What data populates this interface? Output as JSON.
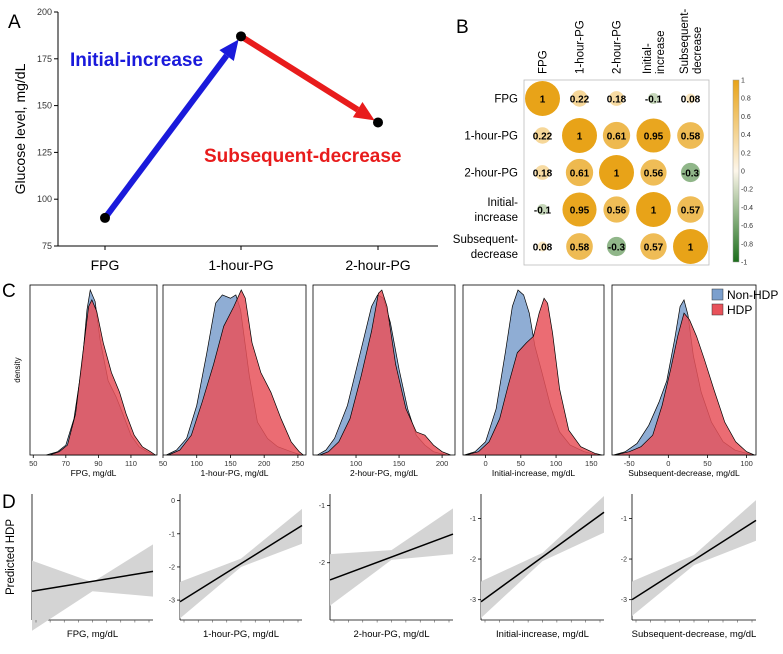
{
  "panel_labels": {
    "a": "A",
    "b": "B",
    "c": "C",
    "d": "D"
  },
  "colors": {
    "blue_arrow": "#1a1adb",
    "red_arrow": "#e81c1c",
    "non_hdp_fill": "#7b9fcd",
    "hdp_fill": "#e8525a",
    "corr_positive": "#e8a318",
    "corr_negative": "#1b6e1b",
    "ci_band": "#d4d4d4"
  },
  "chart_data": [
    {
      "id": "A",
      "type": "line",
      "categories": [
        "FPG",
        "1-hour-PG",
        "2-hour-PG"
      ],
      "values": [
        90,
        187,
        141
      ],
      "ylabel": "Glucose level, mg/dL",
      "ylim": [
        75,
        200
      ],
      "yticks": [
        75,
        100,
        125,
        150,
        175,
        200
      ],
      "annotations": [
        "Initial-increase",
        "Subsequent-decrease"
      ]
    },
    {
      "id": "B",
      "type": "heatmap",
      "variables": [
        "FPG",
        "1-hour-PG",
        "2-hour-PG",
        "Initial-increase",
        "Subsequent-decrease"
      ],
      "row_labels": [
        "FPG",
        "1-hour-PG",
        "2-hour-PG",
        "Initial-\nincrease",
        "Subsequent-\ndecrease"
      ],
      "col_labels": [
        "FPG",
        "1-hour-PG",
        "2-hour-PG",
        "Initial-\nincrease",
        "Subsequent-\ndecrease"
      ],
      "cells": [
        [
          "1",
          "0.22",
          "0.18",
          "-0.1",
          "0.08"
        ],
        [
          "0.22",
          "1",
          "0.61",
          "0.95",
          "0.58"
        ],
        [
          "0.18",
          "0.61",
          "1",
          "0.56",
          "-0.3"
        ],
        [
          "-0.1",
          "0.95",
          "0.56",
          "1",
          "0.57"
        ],
        [
          "0.08",
          "0.58",
          "-0.3",
          "0.57",
          "1"
        ]
      ],
      "colorbar_ticks": [
        "1",
        "0.8",
        "0.6",
        "0.4",
        "0.2",
        "0",
        "-0.2",
        "-0.4",
        "-0.6",
        "-0.8",
        "-1"
      ]
    },
    {
      "id": "C",
      "type": "area",
      "ylabel": "density",
      "legend": [
        "Non-HDP",
        "HDP"
      ],
      "legend_position": "top-right",
      "panels": [
        {
          "xlabel": "FPG, mg/dL",
          "xlim": [
            48,
            126
          ],
          "xticks": [
            50,
            70,
            90,
            110
          ],
          "non_hdp": [
            [
              58,
              0
            ],
            [
              65,
              0.02
            ],
            [
              70,
              0.06
            ],
            [
              75,
              0.22
            ],
            [
              80,
              0.55
            ],
            [
              83,
              0.88
            ],
            [
              85,
              1.0
            ],
            [
              88,
              0.93
            ],
            [
              91,
              0.7
            ],
            [
              96,
              0.45
            ],
            [
              101,
              0.35
            ],
            [
              105,
              0.25
            ],
            [
              110,
              0.12
            ],
            [
              115,
              0.05
            ],
            [
              120,
              0.02
            ],
            [
              124,
              0
            ]
          ],
          "hdp": [
            [
              60,
              0
            ],
            [
              66,
              0.02
            ],
            [
              71,
              0.06
            ],
            [
              76,
              0.25
            ],
            [
              80,
              0.58
            ],
            [
              84,
              0.9
            ],
            [
              86,
              0.94
            ],
            [
              89,
              0.87
            ],
            [
              93,
              0.68
            ],
            [
              98,
              0.5
            ],
            [
              103,
              0.38
            ],
            [
              107,
              0.25
            ],
            [
              112,
              0.12
            ],
            [
              117,
              0.05
            ],
            [
              122,
              0.02
            ],
            [
              125,
              0
            ]
          ]
        },
        {
          "xlabel": "1-hour-PG, mg/dL",
          "xlim": [
            50,
            262
          ],
          "xticks": [
            50,
            100,
            150,
            200,
            250
          ],
          "non_hdp": [
            [
              55,
              0
            ],
            [
              70,
              0.03
            ],
            [
              85,
              0.1
            ],
            [
              100,
              0.3
            ],
            [
              115,
              0.62
            ],
            [
              128,
              0.92
            ],
            [
              138,
              0.97
            ],
            [
              150,
              0.95
            ],
            [
              158,
              0.97
            ],
            [
              165,
              0.88
            ],
            [
              178,
              0.48
            ],
            [
              190,
              0.2
            ],
            [
              205,
              0.1
            ],
            [
              220,
              0.05
            ],
            [
              240,
              0.02
            ],
            [
              255,
              0
            ]
          ],
          "hdp": [
            [
              58,
              0
            ],
            [
              75,
              0.03
            ],
            [
              92,
              0.12
            ],
            [
              108,
              0.32
            ],
            [
              125,
              0.55
            ],
            [
              140,
              0.78
            ],
            [
              155,
              0.9
            ],
            [
              166,
              1.0
            ],
            [
              172,
              0.95
            ],
            [
              182,
              0.68
            ],
            [
              195,
              0.5
            ],
            [
              210,
              0.38
            ],
            [
              225,
              0.22
            ],
            [
              240,
              0.08
            ],
            [
              252,
              0.02
            ],
            [
              258,
              0
            ]
          ]
        },
        {
          "xlabel": "2-hour-PG, mg/dL",
          "xlim": [
            50,
            215
          ],
          "xticks": [
            100,
            150,
            200
          ],
          "non_hdp": [
            [
              55,
              0
            ],
            [
              65,
              0.03
            ],
            [
              75,
              0.1
            ],
            [
              90,
              0.3
            ],
            [
              105,
              0.62
            ],
            [
              118,
              0.9
            ],
            [
              125,
              0.97
            ],
            [
              132,
              0.95
            ],
            [
              140,
              0.8
            ],
            [
              150,
              0.52
            ],
            [
              160,
              0.28
            ],
            [
              170,
              0.12
            ],
            [
              180,
              0.06
            ],
            [
              190,
              0.02
            ],
            [
              205,
              0
            ]
          ],
          "hdp": [
            [
              58,
              0
            ],
            [
              68,
              0.02
            ],
            [
              80,
              0.08
            ],
            [
              93,
              0.22
            ],
            [
              106,
              0.48
            ],
            [
              118,
              0.75
            ],
            [
              126,
              0.98
            ],
            [
              130,
              1.0
            ],
            [
              136,
              0.9
            ],
            [
              146,
              0.55
            ],
            [
              158,
              0.28
            ],
            [
              170,
              0.14
            ],
            [
              180,
              0.12
            ],
            [
              190,
              0.06
            ],
            [
              200,
              0.02
            ],
            [
              210,
              0
            ]
          ]
        },
        {
          "xlabel": "Initial-increase, mg/dL",
          "xlim": [
            -32,
            168
          ],
          "xticks": [
            0,
            50,
            100,
            150
          ],
          "non_hdp": [
            [
              -30,
              0
            ],
            [
              -15,
              0.02
            ],
            [
              0,
              0.08
            ],
            [
              15,
              0.28
            ],
            [
              28,
              0.62
            ],
            [
              38,
              0.9
            ],
            [
              46,
              1.0
            ],
            [
              54,
              0.97
            ],
            [
              62,
              0.86
            ],
            [
              70,
              0.66
            ],
            [
              80,
              0.5
            ],
            [
              92,
              0.3
            ],
            [
              105,
              0.14
            ],
            [
              120,
              0.06
            ],
            [
              140,
              0.02
            ],
            [
              160,
              0
            ]
          ],
          "hdp": [
            [
              -28,
              0
            ],
            [
              -10,
              0.02
            ],
            [
              5,
              0.08
            ],
            [
              20,
              0.22
            ],
            [
              32,
              0.42
            ],
            [
              45,
              0.62
            ],
            [
              58,
              0.68
            ],
            [
              68,
              0.72
            ],
            [
              76,
              0.86
            ],
            [
              83,
              0.95
            ],
            [
              88,
              0.92
            ],
            [
              95,
              0.74
            ],
            [
              105,
              0.4
            ],
            [
              118,
              0.15
            ],
            [
              135,
              0.05
            ],
            [
              155,
              0.01
            ],
            [
              165,
              0
            ]
          ]
        },
        {
          "xlabel": "Subsequent-decrease, mg/dL",
          "xlim": [
            -72,
            112
          ],
          "xticks": [
            -50,
            0,
            50,
            100
          ],
          "non_hdp": [
            [
              -70,
              0
            ],
            [
              -55,
              0.02
            ],
            [
              -40,
              0.07
            ],
            [
              -25,
              0.18
            ],
            [
              -12,
              0.32
            ],
            [
              -2,
              0.45
            ],
            [
              8,
              0.7
            ],
            [
              15,
              0.9
            ],
            [
              20,
              0.94
            ],
            [
              25,
              0.85
            ],
            [
              32,
              0.6
            ],
            [
              42,
              0.38
            ],
            [
              55,
              0.2
            ],
            [
              70,
              0.08
            ],
            [
              85,
              0.03
            ],
            [
              100,
              0.01
            ],
            [
              108,
              0
            ]
          ],
          "hdp": [
            [
              -68,
              0
            ],
            [
              -50,
              0.02
            ],
            [
              -35,
              0.05
            ],
            [
              -20,
              0.12
            ],
            [
              -8,
              0.3
            ],
            [
              3,
              0.52
            ],
            [
              12,
              0.72
            ],
            [
              20,
              0.86
            ],
            [
              27,
              0.82
            ],
            [
              36,
              0.72
            ],
            [
              46,
              0.58
            ],
            [
              58,
              0.4
            ],
            [
              72,
              0.2
            ],
            [
              86,
              0.08
            ],
            [
              100,
              0.02
            ],
            [
              110,
              0
            ]
          ]
        }
      ]
    },
    {
      "id": "D",
      "type": "line",
      "ylabel": "Predicted HDP",
      "panels": [
        {
          "xlabel": "FPG, mg/dL",
          "yticks": [],
          "ylim": [
            -3,
            0.5
          ],
          "line": [
            [
              0,
              -2.2
            ],
            [
              1,
              -1.65
            ]
          ],
          "ci_low": [
            [
              0,
              -3.3
            ],
            [
              0.5,
              -2.2
            ],
            [
              1,
              -2.35
            ]
          ],
          "ci_high": [
            [
              0,
              -1.35
            ],
            [
              0.5,
              -1.95
            ],
            [
              1,
              -0.9
            ]
          ]
        },
        {
          "xlabel": "1-hour-PG, mg/dL",
          "yticks": [
            "0",
            "-1",
            "-2",
            "-3"
          ],
          "ylim": [
            -3.6,
            0.2
          ],
          "line": [
            [
              0,
              -3.05
            ],
            [
              1,
              -0.75
            ]
          ],
          "ci_low": [
            [
              0,
              -3.55
            ],
            [
              0.5,
              -2.0
            ],
            [
              1,
              -1.3
            ]
          ],
          "ci_high": [
            [
              0,
              -2.45
            ],
            [
              0.5,
              -1.75
            ],
            [
              1,
              -0.25
            ]
          ]
        },
        {
          "xlabel": "2-hour-PG, mg/dL",
          "yticks": [
            "-1",
            "-2"
          ],
          "ylim": [
            -3.0,
            -0.8
          ],
          "line": [
            [
              0,
              -2.3
            ],
            [
              1,
              -1.5
            ]
          ],
          "ci_low": [
            [
              0,
              -2.75
            ],
            [
              0.5,
              -1.95
            ],
            [
              1,
              -1.85
            ]
          ],
          "ci_high": [
            [
              0,
              -1.85
            ],
            [
              0.5,
              -1.78
            ],
            [
              1,
              -1.05
            ]
          ]
        },
        {
          "xlabel": "Initial-increase, mg/dL",
          "yticks": [
            "-1",
            "-2",
            "-3"
          ],
          "ylim": [
            -3.5,
            -0.4
          ],
          "line": [
            [
              0,
              -3.05
            ],
            [
              1,
              -0.85
            ]
          ],
          "ci_low": [
            [
              0,
              -3.45
            ],
            [
              0.5,
              -2.05
            ],
            [
              1,
              -1.35
            ]
          ],
          "ci_high": [
            [
              0,
              -2.55
            ],
            [
              0.5,
              -1.85
            ],
            [
              1,
              -0.45
            ]
          ]
        },
        {
          "xlabel": "Subsequent-decrease, mg/dL",
          "yticks": [
            "-1",
            "-2",
            "-3"
          ],
          "ylim": [
            -3.5,
            -0.4
          ],
          "line": [
            [
              0,
              -3.0
            ],
            [
              1,
              -1.05
            ]
          ],
          "ci_low": [
            [
              0,
              -3.4
            ],
            [
              0.5,
              -2.15
            ],
            [
              1,
              -1.55
            ]
          ],
          "ci_high": [
            [
              0,
              -2.55
            ],
            [
              0.5,
              -1.9
            ],
            [
              1,
              -0.55
            ]
          ]
        }
      ]
    }
  ]
}
